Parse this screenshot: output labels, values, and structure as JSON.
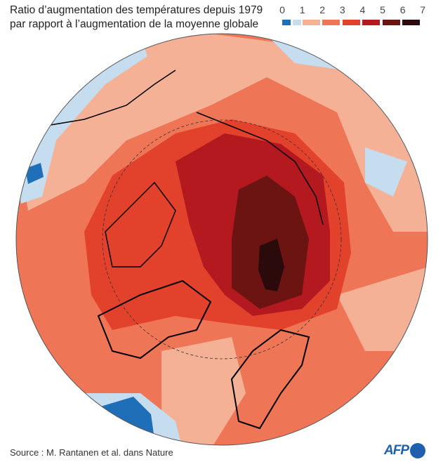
{
  "title": {
    "line1": "Ratio d’augmentation des températures depuis 1979",
    "line2": "par rapport à l’augmentation de la moyenne globale"
  },
  "legend": {
    "ticks": [
      "0",
      "1",
      "2",
      "3",
      "4",
      "5",
      "6",
      "7"
    ],
    "colors": [
      "#1f6fb8",
      "#c6dcef",
      "#f4b196",
      "#ee7656",
      "#e2412c",
      "#b3191f",
      "#6b1412",
      "#2a0a0a"
    ]
  },
  "map": {
    "projection": "polar north",
    "arctic_circle": "dashed",
    "ocean_base_color": "#ee7656"
  },
  "source": "Source : M. Rantanen et al. dans Nature",
  "logo": "AFP"
}
